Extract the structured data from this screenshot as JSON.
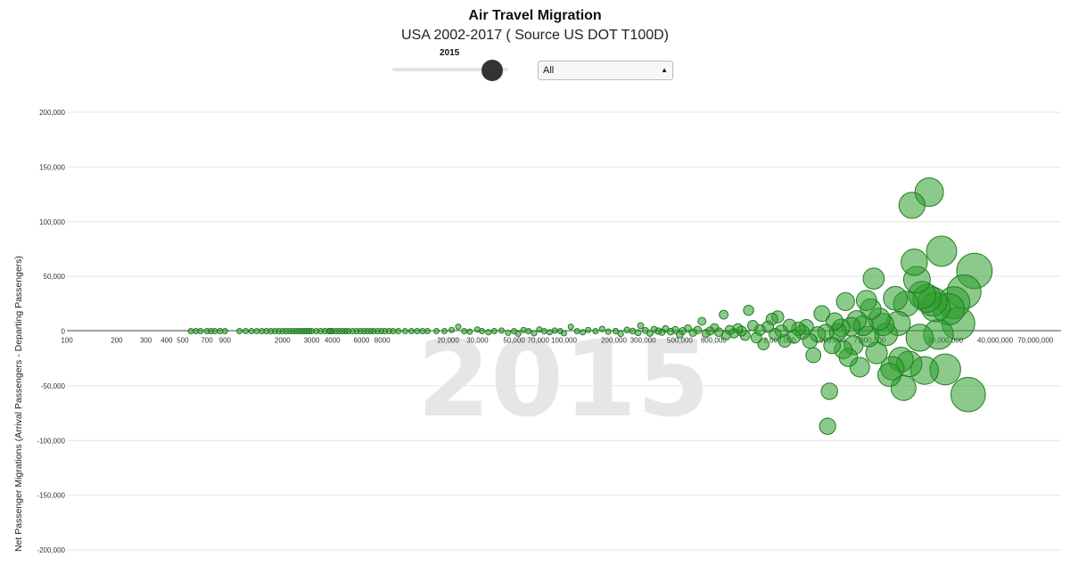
{
  "header": {
    "title": "Air Travel Migration",
    "subtitle": "USA 2002-2017 ( Source US DOT T100D)"
  },
  "controls": {
    "year_value": "2015",
    "year_min": 2002,
    "year_max": 2017,
    "region_select": "All"
  },
  "chart_data": {
    "type": "scatter",
    "x_scale": "log",
    "xlim": [
      100,
      100000000
    ],
    "ylim": [
      -200000,
      200000
    ],
    "xlabel": "",
    "ylabel": "Net Passenger Migrations (Arrival Passengers - Departing Passengers)",
    "watermark": "2015",
    "grid": true,
    "point_color": "#2e9e2e",
    "x_ticks": [
      {
        "v": 100,
        "label": "100"
      },
      {
        "v": 200,
        "label": "200"
      },
      {
        "v": 300,
        "label": "300"
      },
      {
        "v": 400,
        "label": "400"
      },
      {
        "v": 500,
        "label": "500"
      },
      {
        "v": 700,
        "label": "700"
      },
      {
        "v": 900,
        "label": "900"
      },
      {
        "v": 2000,
        "label": "2000"
      },
      {
        "v": 3000,
        "label": "3000"
      },
      {
        "v": 4000,
        "label": "4000"
      },
      {
        "v": 6000,
        "label": "6000"
      },
      {
        "v": 8000,
        "label": "8000"
      },
      {
        "v": 20000,
        "label": "20,000"
      },
      {
        "v": 30000,
        "label": "30,000"
      },
      {
        "v": 50000,
        "label": "50,000"
      },
      {
        "v": 70000,
        "label": "70,000"
      },
      {
        "v": 100000,
        "label": "100,000"
      },
      {
        "v": 200000,
        "label": "200,000"
      },
      {
        "v": 300000,
        "label": "300,000"
      },
      {
        "v": 500000,
        "label": "500,000"
      },
      {
        "v": 800000,
        "label": "800,000"
      },
      {
        "v": 2000000,
        "label": "2,000,000"
      },
      {
        "v": 4000000,
        "label": "4,000,000"
      },
      {
        "v": 7000000,
        "label": "7,000,000"
      },
      {
        "v": 20000000,
        "label": "20,000,000"
      },
      {
        "v": 40000000,
        "label": "40,000,000"
      },
      {
        "v": 70000000,
        "label": "70,000,000"
      }
    ],
    "y_ticks": [
      {
        "v": 200000,
        "label": "200,000"
      },
      {
        "v": 150000,
        "label": "150,000"
      },
      {
        "v": 100000,
        "label": "100,000"
      },
      {
        "v": 50000,
        "label": "50,000"
      },
      {
        "v": 0,
        "label": "0"
      },
      {
        "v": -50000,
        "label": "-50,000"
      },
      {
        "v": -100000,
        "label": "-100,000"
      },
      {
        "v": -150000,
        "label": "-150,000"
      },
      {
        "v": -200000,
        "label": "-200,000"
      }
    ],
    "points": [
      [
        560,
        0
      ],
      [
        600,
        0
      ],
      [
        640,
        0
      ],
      [
        700,
        0
      ],
      [
        740,
        0
      ],
      [
        780,
        0
      ],
      [
        840,
        0
      ],
      [
        900,
        0
      ],
      [
        1100,
        0
      ],
      [
        1200,
        0
      ],
      [
        1300,
        0
      ],
      [
        1400,
        0
      ],
      [
        1500,
        0
      ],
      [
        1600,
        0
      ],
      [
        1700,
        0
      ],
      [
        1800,
        0
      ],
      [
        1900,
        0
      ],
      [
        2000,
        0
      ],
      [
        2100,
        0
      ],
      [
        2200,
        0
      ],
      [
        2300,
        0
      ],
      [
        2400,
        0
      ],
      [
        2500,
        0
      ],
      [
        2600,
        0
      ],
      [
        2700,
        0
      ],
      [
        2800,
        0
      ],
      [
        2900,
        0
      ],
      [
        3000,
        0
      ],
      [
        3200,
        0
      ],
      [
        3400,
        0
      ],
      [
        3600,
        0
      ],
      [
        3800,
        0
      ],
      [
        3900,
        0
      ],
      [
        4000,
        0
      ],
      [
        4200,
        0
      ],
      [
        4400,
        0
      ],
      [
        4600,
        0
      ],
      [
        4800,
        0
      ],
      [
        5000,
        0
      ],
      [
        5300,
        0
      ],
      [
        5600,
        0
      ],
      [
        5900,
        0
      ],
      [
        6200,
        0
      ],
      [
        6500,
        0
      ],
      [
        6800,
        0
      ],
      [
        7100,
        0
      ],
      [
        7500,
        0
      ],
      [
        7900,
        0
      ],
      [
        8300,
        0
      ],
      [
        8800,
        0
      ],
      [
        9300,
        0
      ],
      [
        10000,
        0
      ],
      [
        11000,
        0
      ],
      [
        12000,
        0
      ],
      [
        13000,
        0
      ],
      [
        14000,
        0
      ],
      [
        15000,
        0
      ],
      [
        17000,
        0
      ],
      [
        19000,
        0
      ],
      [
        21000,
        1000
      ],
      [
        23000,
        4000
      ],
      [
        25000,
        0
      ],
      [
        27000,
        -500
      ],
      [
        30000,
        1500
      ],
      [
        32000,
        0
      ],
      [
        35000,
        -1000
      ],
      [
        38000,
        0
      ],
      [
        42000,
        500
      ],
      [
        46000,
        -1500
      ],
      [
        50000,
        0
      ],
      [
        53000,
        -2500
      ],
      [
        57000,
        1000
      ],
      [
        61000,
        0
      ],
      [
        66000,
        -2000
      ],
      [
        71000,
        1500
      ],
      [
        76000,
        0
      ],
      [
        82000,
        -1000
      ],
      [
        88000,
        500
      ],
      [
        95000,
        0
      ],
      [
        100000,
        -2000
      ],
      [
        110000,
        4000
      ],
      [
        120000,
        0
      ],
      [
        130000,
        -1000
      ],
      [
        140000,
        1000
      ],
      [
        155000,
        0
      ],
      [
        170000,
        2000
      ],
      [
        185000,
        -500
      ],
      [
        205000,
        0
      ],
      [
        220000,
        -2500
      ],
      [
        240000,
        1000
      ],
      [
        260000,
        0
      ],
      [
        280000,
        -1500
      ],
      [
        290000,
        5000
      ],
      [
        310000,
        500
      ],
      [
        330000,
        -2000
      ],
      [
        350000,
        1500
      ],
      [
        370000,
        0
      ],
      [
        390000,
        -1000
      ],
      [
        410000,
        2000
      ],
      [
        440000,
        -500
      ],
      [
        470000,
        1000
      ],
      [
        500000,
        -3000
      ],
      [
        520000,
        0
      ],
      [
        560000,
        2500
      ],
      [
        600000,
        -1500
      ],
      [
        640000,
        1000
      ],
      [
        680000,
        9000
      ],
      [
        720000,
        -2000
      ],
      [
        760000,
        0
      ],
      [
        810000,
        3000
      ],
      [
        860000,
        -1000
      ],
      [
        920000,
        15000
      ],
      [
        950000,
        -4000
      ],
      [
        1000000,
        1000
      ],
      [
        1060000,
        -2000
      ],
      [
        1120000,
        2500
      ],
      [
        1180000,
        0
      ],
      [
        1240000,
        -4000
      ],
      [
        1300000,
        19000
      ],
      [
        1380000,
        5000
      ],
      [
        1450000,
        -6000
      ],
      [
        1520000,
        1000
      ],
      [
        1600000,
        -12000
      ],
      [
        1700000,
        4000
      ],
      [
        1800000,
        11000
      ],
      [
        1880000,
        -3000
      ],
      [
        1950000,
        13000
      ],
      [
        2050000,
        0
      ],
      [
        2150000,
        -9000
      ],
      [
        2300000,
        5000
      ],
      [
        2450000,
        -5000
      ],
      [
        2600000,
        2000
      ],
      [
        2750000,
        -1000
      ],
      [
        2900000,
        4000
      ],
      [
        3050000,
        -9000
      ],
      [
        3200000,
        -22000
      ],
      [
        3400000,
        -3000
      ],
      [
        3600000,
        16000
      ],
      [
        3800000,
        -1000
      ],
      [
        3900000,
        -87000
      ],
      [
        4000000,
        -55000
      ],
      [
        4150000,
        -13000
      ],
      [
        4300000,
        9000
      ],
      [
        4500000,
        -1000
      ],
      [
        4700000,
        3000
      ],
      [
        4850000,
        -17000
      ],
      [
        5000000,
        27000
      ],
      [
        5200000,
        -24000
      ],
      [
        5400000,
        4000
      ],
      [
        5600000,
        -13000
      ],
      [
        5850000,
        10000
      ],
      [
        6100000,
        -33000
      ],
      [
        6400000,
        5000
      ],
      [
        6700000,
        28000
      ],
      [
        6900000,
        -5000
      ],
      [
        7100000,
        20000
      ],
      [
        7400000,
        48000
      ],
      [
        7700000,
        -20000
      ],
      [
        8000000,
        11000
      ],
      [
        8400000,
        6000
      ],
      [
        8800000,
        -3000
      ],
      [
        9200000,
        -40000
      ],
      [
        9600000,
        -34000
      ],
      [
        10000000,
        30000
      ],
      [
        10400000,
        7000
      ],
      [
        10800000,
        -26000
      ],
      [
        11200000,
        -52000
      ],
      [
        11600000,
        25000
      ],
      [
        12100000,
        -30000
      ],
      [
        12600000,
        115000
      ],
      [
        13000000,
        63000
      ],
      [
        13500000,
        47000
      ],
      [
        14000000,
        -6000
      ],
      [
        14500000,
        33000
      ],
      [
        15000000,
        -36000
      ],
      [
        15500000,
        30000
      ],
      [
        16000000,
        127000
      ],
      [
        16800000,
        27000
      ],
      [
        17500000,
        22000
      ],
      [
        18200000,
        -3000
      ],
      [
        19000000,
        73000
      ],
      [
        20000000,
        -35000
      ],
      [
        21000000,
        20000
      ],
      [
        22500000,
        26000
      ],
      [
        24000000,
        7000
      ],
      [
        26000000,
        36000
      ],
      [
        27500000,
        -58000
      ],
      [
        30000000,
        55000
      ]
    ]
  }
}
